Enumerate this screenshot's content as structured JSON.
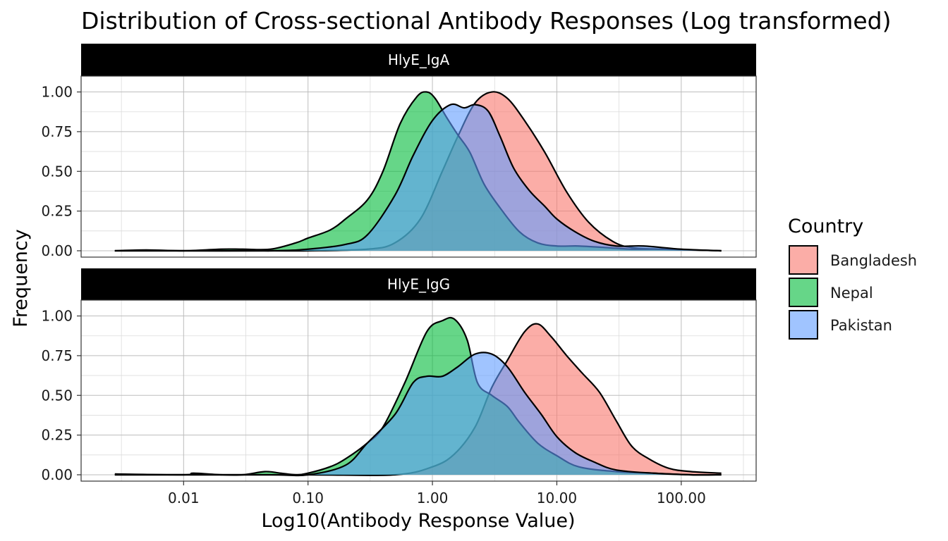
{
  "chart_data": {
    "type": "area",
    "title": "Distribution of Cross-sectional Antibody Responses (Log transformed)",
    "xlabel": "Log10(Antibody Response Value)",
    "ylabel": "Frequency",
    "x_scale": "log10",
    "xlim": [
      0.0015,
      400
    ],
    "ylim": [
      -0.04,
      1.1
    ],
    "x_ticks": [
      0.01,
      0.1,
      1,
      10,
      100
    ],
    "x_tick_labels": [
      "0.01",
      "0.10",
      "1.00",
      "10.00",
      "100.00"
    ],
    "y_ticks": [
      0,
      0.25,
      0.5,
      0.75,
      1
    ],
    "y_tick_labels": [
      "0.00",
      "0.25",
      "0.50",
      "0.75",
      "1.00"
    ],
    "grid": true,
    "legend": {
      "title": "Country",
      "placement": "right",
      "entries": [
        {
          "name": "Bangladesh",
          "color": "#F8766D"
        },
        {
          "name": "Nepal",
          "color": "#00BA38"
        },
        {
          "name": "Pakistan",
          "color": "#619CFF"
        }
      ]
    },
    "fill_opacity": 0.6,
    "panels": [
      {
        "strip": "HlyE_IgA",
        "series": [
          {
            "name": "Bangladesh",
            "color": "#F8766D",
            "x": [
              0.0028,
              0.01,
              0.03,
              0.1,
              0.3,
              0.5,
              0.8,
              1.2,
              1.6,
              2.2,
              3.0,
              4.0,
              5.5,
              8,
              12,
              18,
              28,
              40,
              70,
              120,
              210
            ],
            "y": [
              0.0,
              0.0,
              0.0,
              0.0,
              0.01,
              0.05,
              0.2,
              0.5,
              0.72,
              0.93,
              1.0,
              0.96,
              0.82,
              0.62,
              0.37,
              0.18,
              0.06,
              0.02,
              0.01,
              0.005,
              0.0
            ]
          },
          {
            "name": "Nepal",
            "color": "#00BA38",
            "x": [
              0.0028,
              0.005,
              0.01,
              0.02,
              0.03,
              0.05,
              0.08,
              0.1,
              0.15,
              0.2,
              0.3,
              0.4,
              0.55,
              0.75,
              0.9,
              1.05,
              1.3,
              1.6,
              2.0,
              2.6,
              3.5,
              5,
              7,
              10,
              15,
              25,
              40,
              70,
              210
            ],
            "y": [
              0.0,
              0.005,
              0.0,
              0.01,
              0.01,
              0.01,
              0.05,
              0.08,
              0.13,
              0.2,
              0.32,
              0.5,
              0.8,
              0.97,
              1.0,
              0.96,
              0.84,
              0.73,
              0.62,
              0.42,
              0.27,
              0.12,
              0.05,
              0.03,
              0.03,
              0.02,
              0.01,
              0.01,
              0.0
            ]
          },
          {
            "name": "Pakistan",
            "color": "#619CFF",
            "x": [
              0.0028,
              0.01,
              0.05,
              0.1,
              0.2,
              0.3,
              0.5,
              0.7,
              1.0,
              1.4,
              1.8,
              2.2,
              2.8,
              3.5,
              4.5,
              6,
              8,
              10,
              14,
              20,
              30,
              50,
              100,
              210
            ],
            "y": [
              0.0,
              0.0,
              0.0,
              0.01,
              0.04,
              0.1,
              0.35,
              0.6,
              0.82,
              0.92,
              0.9,
              0.92,
              0.88,
              0.72,
              0.52,
              0.38,
              0.28,
              0.2,
              0.12,
              0.06,
              0.03,
              0.03,
              0.01,
              0.0
            ]
          }
        ]
      },
      {
        "strip": "HlyE_IgG",
        "series": [
          {
            "name": "Bangladesh",
            "color": "#F8766D",
            "x": [
              0.0028,
              0.01,
              0.1,
              0.5,
              1.0,
              1.5,
              2.2,
              3.0,
              4.0,
              5.5,
              7,
              9,
              12,
              16,
              22,
              30,
              40,
              55,
              80,
              120,
              210
            ],
            "y": [
              0.0,
              0.0,
              0.0,
              0.0,
              0.05,
              0.13,
              0.3,
              0.55,
              0.72,
              0.9,
              0.95,
              0.87,
              0.75,
              0.64,
              0.52,
              0.34,
              0.18,
              0.1,
              0.04,
              0.02,
              0.01
            ]
          },
          {
            "name": "Nepal",
            "color": "#00BA38",
            "x": [
              0.0028,
              0.01,
              0.012,
              0.02,
              0.03,
              0.045,
              0.06,
              0.08,
              0.1,
              0.15,
              0.2,
              0.3,
              0.4,
              0.6,
              0.9,
              1.2,
              1.5,
              1.9,
              2.3,
              3,
              4,
              5,
              7,
              10,
              15,
              30,
              60,
              120,
              210
            ],
            "y": [
              0.005,
              0.0,
              0.01,
              0.0,
              0.0,
              0.02,
              0.01,
              0.0,
              0.01,
              0.05,
              0.1,
              0.2,
              0.3,
              0.58,
              0.9,
              0.97,
              0.98,
              0.85,
              0.58,
              0.5,
              0.43,
              0.33,
              0.2,
              0.12,
              0.05,
              0.02,
              0.01,
              0.0,
              0.0
            ]
          },
          {
            "name": "Pakistan",
            "color": "#619CFF",
            "x": [
              0.0028,
              0.01,
              0.05,
              0.1,
              0.2,
              0.3,
              0.5,
              0.7,
              0.9,
              1.2,
              1.6,
              2.2,
              3.0,
              4.0,
              5.5,
              7.5,
              10,
              14,
              20,
              30,
              60,
              120,
              210
            ],
            "y": [
              0.0,
              0.0,
              0.0,
              0.0,
              0.06,
              0.2,
              0.38,
              0.58,
              0.62,
              0.62,
              0.68,
              0.76,
              0.76,
              0.68,
              0.52,
              0.38,
              0.24,
              0.14,
              0.08,
              0.03,
              0.01,
              0.0,
              0.0
            ]
          }
        ]
      }
    ]
  }
}
